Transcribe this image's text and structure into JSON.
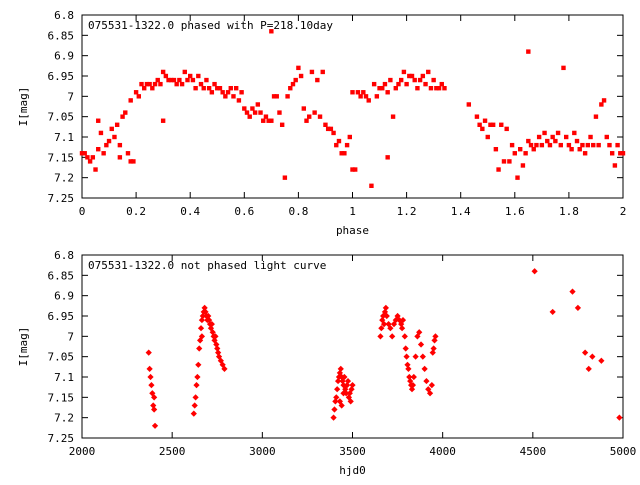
{
  "chart_data": [
    {
      "type": "scatter",
      "title": "075531-1322.0 phased with P=218.10day",
      "xlabel": "phase",
      "ylabel": "I[mag]",
      "xlim": [
        0,
        2
      ],
      "ylim": [
        7.25,
        6.8
      ],
      "y_inverted": true,
      "xticks": [
        0,
        0.2,
        0.4,
        0.6,
        0.8,
        1,
        1.2,
        1.4,
        1.6,
        1.8,
        2
      ],
      "xtick_labels": [
        "0",
        "0.2",
        "0.4",
        "0.6",
        "0.8",
        "1",
        "1.2",
        "1.4",
        "1.6",
        "1.8",
        "2"
      ],
      "yticks": [
        6.8,
        6.85,
        6.9,
        6.95,
        7,
        7.05,
        7.1,
        7.15,
        7.2,
        7.25
      ],
      "ytick_labels": [
        "6.8",
        "6.85",
        "6.9",
        "6.95",
        "7",
        "7.05",
        "7.1",
        "7.15",
        "7.2",
        "7.25"
      ],
      "marker_color": "#ff0000",
      "grid": false,
      "points": [
        [
          0.0,
          7.14
        ],
        [
          0.01,
          7.14
        ],
        [
          0.02,
          7.15
        ],
        [
          0.03,
          7.16
        ],
        [
          0.04,
          7.15
        ],
        [
          0.05,
          7.18
        ],
        [
          0.06,
          7.13
        ],
        [
          0.06,
          7.06
        ],
        [
          0.07,
          7.09
        ],
        [
          0.08,
          7.14
        ],
        [
          0.09,
          7.12
        ],
        [
          0.1,
          7.11
        ],
        [
          0.11,
          7.08
        ],
        [
          0.12,
          7.1
        ],
        [
          0.13,
          7.07
        ],
        [
          0.14,
          7.15
        ],
        [
          0.14,
          7.12
        ],
        [
          0.15,
          7.05
        ],
        [
          0.16,
          7.04
        ],
        [
          0.17,
          7.14
        ],
        [
          0.18,
          7.16
        ],
        [
          0.19,
          7.16
        ],
        [
          0.18,
          7.01
        ],
        [
          0.2,
          6.99
        ],
        [
          0.21,
          7.0
        ],
        [
          0.22,
          6.97
        ],
        [
          0.23,
          6.98
        ],
        [
          0.24,
          6.97
        ],
        [
          0.25,
          6.97
        ],
        [
          0.26,
          6.98
        ],
        [
          0.27,
          6.97
        ],
        [
          0.28,
          6.96
        ],
        [
          0.29,
          6.97
        ],
        [
          0.3,
          6.94
        ],
        [
          0.3,
          7.06
        ],
        [
          0.31,
          6.95
        ],
        [
          0.32,
          6.96
        ],
        [
          0.33,
          6.96
        ],
        [
          0.34,
          6.96
        ],
        [
          0.35,
          6.97
        ],
        [
          0.36,
          6.96
        ],
        [
          0.37,
          6.97
        ],
        [
          0.38,
          6.94
        ],
        [
          0.39,
          6.96
        ],
        [
          0.4,
          6.95
        ],
        [
          0.41,
          6.96
        ],
        [
          0.42,
          6.98
        ],
        [
          0.43,
          6.95
        ],
        [
          0.44,
          6.97
        ],
        [
          0.45,
          6.98
        ],
        [
          0.46,
          6.96
        ],
        [
          0.47,
          6.98
        ],
        [
          0.48,
          6.99
        ],
        [
          0.49,
          6.97
        ],
        [
          0.5,
          6.98
        ],
        [
          0.51,
          6.98
        ],
        [
          0.52,
          6.99
        ],
        [
          0.53,
          7.0
        ],
        [
          0.54,
          6.99
        ],
        [
          0.55,
          6.98
        ],
        [
          0.56,
          7.0
        ],
        [
          0.57,
          6.98
        ],
        [
          0.58,
          7.01
        ],
        [
          0.59,
          6.99
        ],
        [
          0.6,
          7.03
        ],
        [
          0.61,
          7.04
        ],
        [
          0.62,
          7.05
        ],
        [
          0.63,
          7.03
        ],
        [
          0.64,
          7.04
        ],
        [
          0.65,
          7.02
        ],
        [
          0.66,
          7.04
        ],
        [
          0.67,
          7.06
        ],
        [
          0.68,
          7.05
        ],
        [
          0.69,
          7.06
        ],
        [
          0.7,
          7.06
        ],
        [
          0.7,
          6.84
        ],
        [
          0.71,
          7.0
        ],
        [
          0.72,
          7.0
        ],
        [
          0.73,
          7.04
        ],
        [
          0.74,
          7.07
        ],
        [
          0.75,
          7.2
        ],
        [
          0.76,
          7.0
        ],
        [
          0.77,
          6.98
        ],
        [
          0.78,
          6.97
        ],
        [
          0.79,
          6.96
        ],
        [
          0.8,
          6.93
        ],
        [
          0.81,
          6.95
        ],
        [
          0.82,
          7.03
        ],
        [
          0.83,
          7.06
        ],
        [
          0.84,
          7.05
        ],
        [
          0.85,
          6.94
        ],
        [
          0.86,
          7.04
        ],
        [
          0.87,
          6.96
        ],
        [
          0.88,
          7.05
        ],
        [
          0.89,
          6.94
        ],
        [
          0.9,
          7.07
        ],
        [
          0.91,
          7.08
        ],
        [
          0.92,
          7.08
        ],
        [
          0.93,
          7.09
        ],
        [
          0.94,
          7.12
        ],
        [
          0.95,
          7.11
        ],
        [
          0.96,
          7.14
        ],
        [
          0.97,
          7.14
        ],
        [
          0.98,
          7.12
        ],
        [
          0.99,
          7.1
        ],
        [
          1.0,
          6.99
        ],
        [
          1.0,
          7.18
        ],
        [
          1.01,
          7.18
        ],
        [
          1.02,
          6.99
        ],
        [
          1.03,
          7.0
        ],
        [
          1.04,
          6.99
        ],
        [
          1.05,
          7.0
        ],
        [
          1.06,
          7.01
        ],
        [
          1.07,
          7.22
        ],
        [
          1.08,
          6.97
        ],
        [
          1.09,
          7.0
        ],
        [
          1.1,
          6.98
        ],
        [
          1.11,
          6.98
        ],
        [
          1.12,
          6.97
        ],
        [
          1.13,
          6.99
        ],
        [
          1.13,
          7.15
        ],
        [
          1.14,
          6.96
        ],
        [
          1.15,
          7.05
        ],
        [
          1.16,
          6.98
        ],
        [
          1.17,
          6.97
        ],
        [
          1.18,
          6.96
        ],
        [
          1.19,
          6.94
        ],
        [
          1.2,
          6.97
        ],
        [
          1.21,
          6.95
        ],
        [
          1.22,
          6.95
        ],
        [
          1.23,
          6.96
        ],
        [
          1.24,
          6.98
        ],
        [
          1.25,
          6.96
        ],
        [
          1.26,
          6.95
        ],
        [
          1.27,
          6.97
        ],
        [
          1.28,
          6.94
        ],
        [
          1.29,
          6.98
        ],
        [
          1.3,
          6.96
        ],
        [
          1.31,
          6.98
        ],
        [
          1.32,
          6.98
        ],
        [
          1.33,
          6.97
        ],
        [
          1.34,
          6.98
        ],
        [
          1.43,
          7.02
        ],
        [
          1.46,
          7.05
        ],
        [
          1.47,
          7.07
        ],
        [
          1.48,
          7.08
        ],
        [
          1.49,
          7.06
        ],
        [
          1.5,
          7.1
        ],
        [
          1.51,
          7.07
        ],
        [
          1.52,
          7.07
        ],
        [
          1.53,
          7.13
        ],
        [
          1.54,
          7.18
        ],
        [
          1.55,
          7.07
        ],
        [
          1.56,
          7.16
        ],
        [
          1.57,
          7.08
        ],
        [
          1.58,
          7.16
        ],
        [
          1.59,
          7.12
        ],
        [
          1.6,
          7.14
        ],
        [
          1.61,
          7.2
        ],
        [
          1.62,
          7.13
        ],
        [
          1.63,
          7.17
        ],
        [
          1.64,
          7.14
        ],
        [
          1.65,
          6.89
        ],
        [
          1.65,
          7.11
        ],
        [
          1.66,
          7.12
        ],
        [
          1.67,
          7.13
        ],
        [
          1.68,
          7.12
        ],
        [
          1.69,
          7.1
        ],
        [
          1.7,
          7.12
        ],
        [
          1.71,
          7.09
        ],
        [
          1.72,
          7.11
        ],
        [
          1.73,
          7.12
        ],
        [
          1.74,
          7.1
        ],
        [
          1.75,
          7.11
        ],
        [
          1.76,
          7.09
        ],
        [
          1.77,
          7.12
        ],
        [
          1.78,
          6.93
        ],
        [
          1.79,
          7.1
        ],
        [
          1.8,
          7.12
        ],
        [
          1.81,
          7.13
        ],
        [
          1.82,
          7.09
        ],
        [
          1.83,
          7.11
        ],
        [
          1.84,
          7.13
        ],
        [
          1.85,
          7.12
        ],
        [
          1.86,
          7.14
        ],
        [
          1.87,
          7.12
        ],
        [
          1.88,
          7.1
        ],
        [
          1.89,
          7.12
        ],
        [
          1.9,
          7.05
        ],
        [
          1.91,
          7.12
        ],
        [
          1.92,
          7.02
        ],
        [
          1.93,
          7.01
        ],
        [
          1.94,
          7.1
        ],
        [
          1.95,
          7.12
        ],
        [
          1.96,
          7.14
        ],
        [
          1.97,
          7.17
        ],
        [
          1.98,
          7.12
        ],
        [
          1.99,
          7.14
        ],
        [
          2.0,
          7.14
        ]
      ]
    },
    {
      "type": "scatter",
      "title": "075531-1322.0 not phased light curve",
      "xlabel": "hjd0",
      "ylabel": "I[mag]",
      "xlim": [
        2000,
        5000
      ],
      "ylim": [
        7.25,
        6.8
      ],
      "y_inverted": true,
      "xticks": [
        2000,
        2500,
        3000,
        3500,
        4000,
        4500,
        5000
      ],
      "xtick_labels": [
        "2000",
        "2500",
        "3000",
        "3500",
        "4000",
        "4500",
        "5000"
      ],
      "yticks": [
        6.8,
        6.85,
        6.9,
        6.95,
        7,
        7.05,
        7.1,
        7.15,
        7.2,
        7.25
      ],
      "ytick_labels": [
        "6.8",
        "6.85",
        "6.9",
        "6.95",
        "7",
        "7.05",
        "7.1",
        "7.15",
        "7.2",
        "7.25"
      ],
      "marker_color": "#ff0000",
      "grid": false,
      "points": [
        [
          2370,
          7.04
        ],
        [
          2375,
          7.08
        ],
        [
          2380,
          7.1
        ],
        [
          2385,
          7.12
        ],
        [
          2390,
          7.14
        ],
        [
          2395,
          7.17
        ],
        [
          2400,
          7.18
        ],
        [
          2405,
          7.22
        ],
        [
          2400,
          7.15
        ],
        [
          2620,
          7.19
        ],
        [
          2625,
          7.17
        ],
        [
          2630,
          7.15
        ],
        [
          2635,
          7.12
        ],
        [
          2640,
          7.1
        ],
        [
          2645,
          7.07
        ],
        [
          2650,
          7.03
        ],
        [
          2655,
          7.01
        ],
        [
          2660,
          6.98
        ],
        [
          2665,
          6.96
        ],
        [
          2670,
          6.95
        ],
        [
          2675,
          6.94
        ],
        [
          2680,
          6.93
        ],
        [
          2685,
          6.94
        ],
        [
          2690,
          6.95
        ],
        [
          2695,
          6.96
        ],
        [
          2700,
          6.95
        ],
        [
          2705,
          6.96
        ],
        [
          2710,
          6.97
        ],
        [
          2715,
          6.98
        ],
        [
          2720,
          6.97
        ],
        [
          2725,
          6.99
        ],
        [
          2730,
          7.0
        ],
        [
          2735,
          7.01
        ],
        [
          2740,
          7.0
        ],
        [
          2745,
          7.02
        ],
        [
          2750,
          7.03
        ],
        [
          2755,
          7.04
        ],
        [
          2760,
          7.05
        ],
        [
          2770,
          7.06
        ],
        [
          2780,
          7.07
        ],
        [
          2790,
          7.08
        ],
        [
          2665,
          7.0
        ],
        [
          3395,
          7.2
        ],
        [
          3400,
          7.18
        ],
        [
          3405,
          7.16
        ],
        [
          3410,
          7.15
        ],
        [
          3415,
          7.13
        ],
        [
          3420,
          7.11
        ],
        [
          3425,
          7.1
        ],
        [
          3430,
          7.09
        ],
        [
          3435,
          7.08
        ],
        [
          3440,
          7.1
        ],
        [
          3445,
          7.11
        ],
        [
          3450,
          7.12
        ],
        [
          3455,
          7.1
        ],
        [
          3460,
          7.13
        ],
        [
          3465,
          7.14
        ],
        [
          3470,
          7.12
        ],
        [
          3475,
          7.11
        ],
        [
          3480,
          7.15
        ],
        [
          3485,
          7.14
        ],
        [
          3490,
          7.16
        ],
        [
          3495,
          7.13
        ],
        [
          3500,
          7.12
        ],
        [
          3430,
          7.16
        ],
        [
          3440,
          7.17
        ],
        [
          3450,
          7.14
        ],
        [
          3655,
          7.0
        ],
        [
          3660,
          6.98
        ],
        [
          3665,
          6.96
        ],
        [
          3670,
          6.95
        ],
        [
          3675,
          6.97
        ],
        [
          3680,
          6.94
        ],
        [
          3685,
          6.93
        ],
        [
          3690,
          6.95
        ],
        [
          3700,
          6.97
        ],
        [
          3710,
          6.98
        ],
        [
          3720,
          7.0
        ],
        [
          3730,
          6.97
        ],
        [
          3740,
          6.96
        ],
        [
          3750,
          6.95
        ],
        [
          3760,
          6.96
        ],
        [
          3770,
          6.97
        ],
        [
          3775,
          6.98
        ],
        [
          3780,
          6.96
        ],
        [
          3790,
          7.0
        ],
        [
          3795,
          7.03
        ],
        [
          3800,
          7.05
        ],
        [
          3805,
          7.07
        ],
        [
          3810,
          7.08
        ],
        [
          3815,
          7.1
        ],
        [
          3820,
          7.11
        ],
        [
          3825,
          7.12
        ],
        [
          3830,
          7.13
        ],
        [
          3835,
          7.12
        ],
        [
          3840,
          7.1
        ],
        [
          3850,
          7.05
        ],
        [
          3860,
          7.0
        ],
        [
          3870,
          6.99
        ],
        [
          3880,
          7.02
        ],
        [
          3890,
          7.05
        ],
        [
          3900,
          7.08
        ],
        [
          3910,
          7.11
        ],
        [
          3920,
          7.13
        ],
        [
          3930,
          7.14
        ],
        [
          3940,
          7.12
        ],
        [
          3945,
          7.04
        ],
        [
          3950,
          7.03
        ],
        [
          3955,
          7.01
        ],
        [
          3960,
          7.0
        ],
        [
          4510,
          6.84
        ],
        [
          4610,
          6.94
        ],
        [
          4720,
          6.89
        ],
        [
          4750,
          6.93
        ],
        [
          4790,
          7.04
        ],
        [
          4810,
          7.08
        ],
        [
          4830,
          7.05
        ],
        [
          4880,
          7.06
        ],
        [
          4980,
          7.2
        ]
      ]
    }
  ]
}
